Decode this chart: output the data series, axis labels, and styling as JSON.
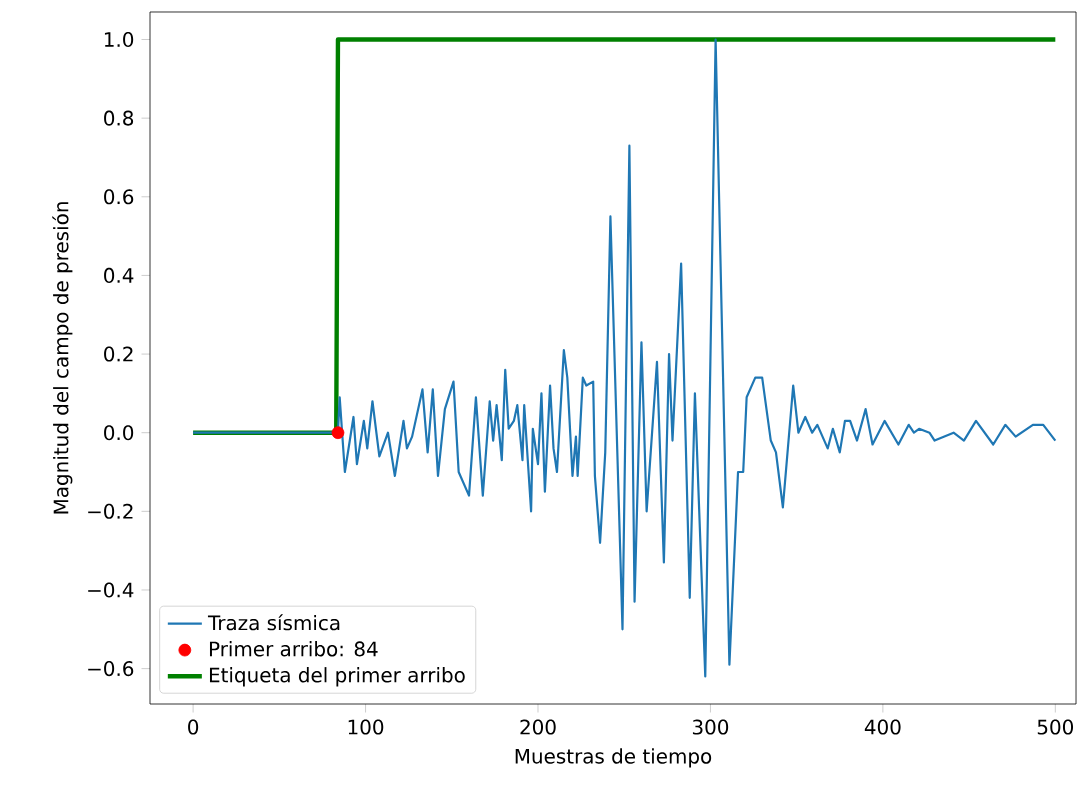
{
  "chart_data": {
    "type": "line",
    "xlabel": "Muestras de tiempo",
    "ylabel": "Magnitud del campo de presión",
    "xlim": [
      -25,
      512
    ],
    "ylim": [
      -0.69,
      1.07
    ],
    "xticks": [
      0,
      100,
      200,
      300,
      400,
      500
    ],
    "yticks": [
      {
        "value": -0.6,
        "label": "−0.6"
      },
      {
        "value": -0.4,
        "label": "−0.4"
      },
      {
        "value": -0.2,
        "label": "−0.2"
      },
      {
        "value": 0,
        "label": "0.0"
      },
      {
        "value": 0.2,
        "label": "0.2"
      },
      {
        "value": 0.4,
        "label": "0.4"
      },
      {
        "value": 0.6,
        "label": "0.6"
      },
      {
        "value": 0.8,
        "label": "0.8"
      },
      {
        "value": 1.0,
        "label": "1.0"
      }
    ],
    "legend": "bottom left",
    "series": [
      {
        "name": "Traza sísmica",
        "color": "#1f77b4",
        "x": [
          0,
          20,
          40,
          60,
          84,
          85,
          88,
          93,
          95,
          99,
          101,
          104,
          108,
          113,
          117,
          122,
          124,
          127,
          133,
          136,
          139,
          142,
          146,
          151,
          154,
          160,
          164,
          168,
          172,
          174,
          176,
          179,
          181,
          183,
          186,
          188,
          191,
          192,
          196,
          197,
          200,
          202,
          204,
          207,
          209,
          211,
          215,
          217,
          220,
          222,
          223,
          226,
          228,
          232,
          233,
          236,
          239,
          242,
          249,
          253,
          256,
          260,
          263,
          269,
          273,
          276,
          278,
          283,
          288,
          291,
          297,
          303,
          311,
          316,
          319,
          321,
          326,
          330,
          335,
          338,
          342,
          348,
          351,
          355,
          359,
          362,
          368,
          371,
          375,
          378,
          381,
          385,
          390,
          394,
          401,
          409,
          415,
          418,
          421,
          427,
          430,
          441,
          447,
          454,
          464,
          471,
          477,
          487,
          493,
          500
        ],
        "values": [
          0,
          0,
          0,
          0,
          0,
          0.09,
          -0.1,
          0.04,
          -0.08,
          0.03,
          -0.04,
          0.08,
          -0.06,
          0,
          -0.11,
          0.03,
          -0.04,
          -0.01,
          0.11,
          -0.05,
          0.11,
          -0.11,
          0.06,
          0.13,
          -0.1,
          -0.16,
          0.09,
          -0.16,
          0.08,
          -0.02,
          0.07,
          -0.07,
          0.16,
          0.01,
          0.03,
          0.07,
          -0.07,
          0.07,
          -0.2,
          0.01,
          -0.08,
          0.1,
          -0.15,
          0.12,
          -0.04,
          -0.1,
          0.21,
          0.14,
          -0.11,
          -0.01,
          -0.11,
          0.14,
          0.12,
          0.13,
          -0.11,
          -0.28,
          -0.05,
          0.55,
          -0.5,
          0.73,
          -0.43,
          0.23,
          -0.2,
          0.18,
          -0.33,
          0.2,
          -0.02,
          0.43,
          -0.42,
          0.1,
          -0.62,
          1.0,
          -0.59,
          -0.1,
          -0.1,
          0.09,
          0.14,
          0.14,
          -0.02,
          -0.05,
          -0.19,
          0.12,
          0.0,
          0.04,
          0.0,
          0.02,
          -0.04,
          0.01,
          -0.05,
          0.03,
          0.03,
          -0.02,
          0.06,
          -0.03,
          0.03,
          -0.03,
          0.02,
          0.0,
          0.01,
          0.0,
          -0.02,
          0.0,
          -0.02,
          0.03,
          -0.03,
          0.02,
          -0.01,
          0.02,
          0.02,
          -0.02
        ]
      },
      {
        "name": "Primer arribo: 84",
        "type": "scatter",
        "color": "#ff0000",
        "x": [
          84
        ],
        "values": [
          0
        ]
      },
      {
        "name": "Etiqueta del primer arribo",
        "type": "line",
        "color": "#008000",
        "x": [
          0,
          83,
          84,
          500
        ],
        "values": [
          0,
          0,
          1,
          1
        ]
      }
    ]
  }
}
